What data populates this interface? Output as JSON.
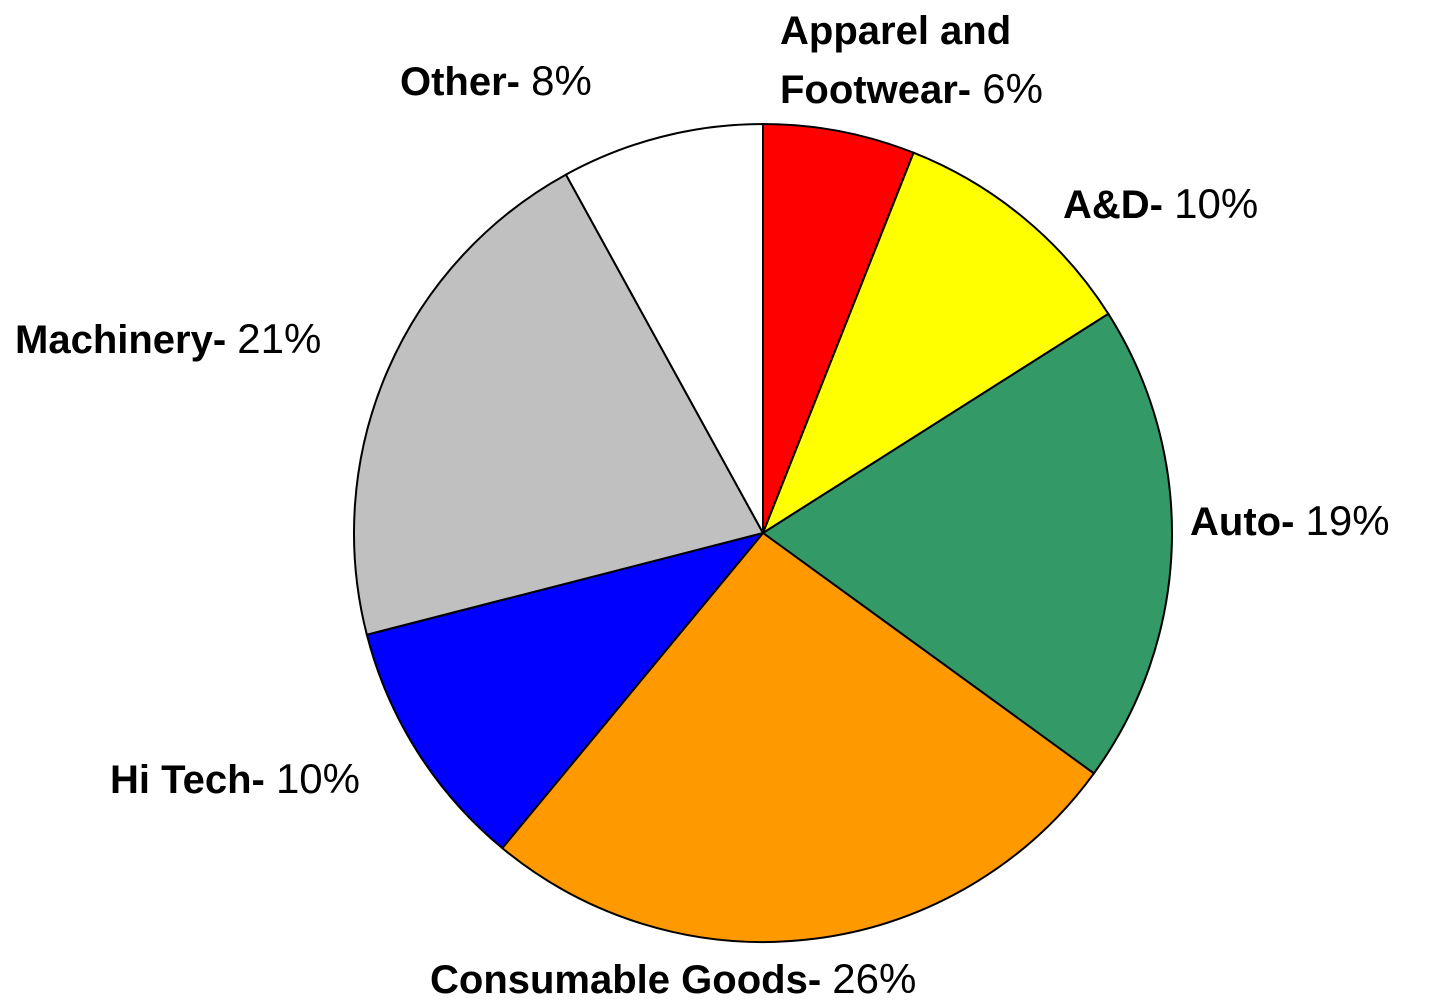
{
  "chart_data": {
    "type": "pie",
    "categories": [
      "Apparel and Footwear-",
      "A&D-",
      "Auto-",
      "Consumable Goods-",
      "Hi Tech-",
      "Machinery-",
      "Other-"
    ],
    "values": [
      6,
      10,
      19,
      26,
      10,
      21,
      8
    ],
    "value_labels": [
      "6%",
      "10%",
      "19%",
      "26%",
      "10%",
      "21%",
      "8%"
    ],
    "colors": [
      "#ff0000",
      "#ffff00",
      "#339966",
      "#ff9900",
      "#0000ff",
      "#c0c0c0",
      "#ffffff"
    ]
  }
}
